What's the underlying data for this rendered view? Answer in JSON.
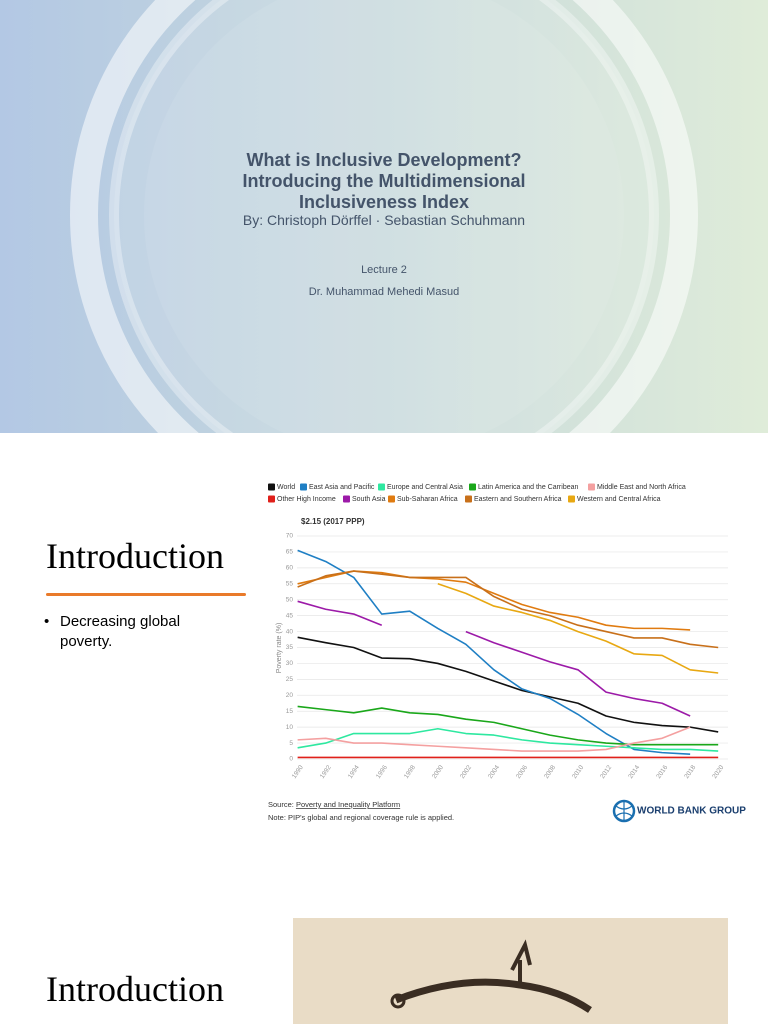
{
  "slide1": {
    "title_lines": [
      "What is Inclusive Development?",
      "Introducing the Multidimensional",
      "Inclusiveness Index"
    ],
    "byline": "By: Christoph Dörffel · Sebastian Schuhmann",
    "lecture": "Lecture 2",
    "instructor": "Dr. Muhammad Mehedi Masud"
  },
  "slide2": {
    "title": "Introduction",
    "bullets": [
      "Decreasing global poverty."
    ],
    "chart_data": {
      "type": "line",
      "subtitle": "$2.15 (2017 PPP)",
      "y_label": "Poverty rate (%)",
      "x": [
        1990,
        1992,
        1994,
        1996,
        1998,
        2000,
        2002,
        2004,
        2006,
        2008,
        2010,
        2012,
        2014,
        2016,
        2018,
        2020
      ],
      "xlim": [
        1988.6,
        2020.7
      ],
      "xticks": [
        1990,
        1992,
        1994,
        1996,
        1998,
        2000,
        2002,
        2004,
        2006,
        2008,
        2010,
        2012,
        2014,
        2016,
        2018,
        2020
      ],
      "ylim": [
        0,
        70
      ],
      "yticks": [
        0,
        5,
        10,
        15,
        20,
        25,
        30,
        35,
        40,
        45,
        50,
        55,
        60,
        65,
        70
      ],
      "grid": true,
      "series": [
        {
          "name": "World",
          "color": "#111111",
          "values": [
            38.2,
            36.5,
            35,
            31.7,
            31.5,
            30,
            27.5,
            24.5,
            21.5,
            19.5,
            17.5,
            13.5,
            11.5,
            10.5,
            10,
            8.5
          ]
        },
        {
          "name": "East Asia and Pacific",
          "color": "#1f7fc4",
          "values": [
            65.5,
            62,
            57,
            45.5,
            46.4,
            41,
            36,
            28,
            22,
            19,
            14,
            8,
            3,
            2,
            1.5,
            null
          ]
        },
        {
          "name": "Europe and Central Asia",
          "color": "#2ee8a0",
          "values": [
            3.5,
            5,
            8,
            8,
            8,
            9.5,
            8,
            7.5,
            6,
            5,
            4.5,
            4,
            3.5,
            3,
            3,
            2.5
          ]
        },
        {
          "name": "Latin America and the Carribean",
          "color": "#1aa71a",
          "values": [
            16.5,
            15.5,
            14.5,
            16,
            14.5,
            14,
            12.5,
            11.5,
            9.5,
            7.5,
            6,
            5,
            4.5,
            4.5,
            4.5,
            4.5
          ]
        },
        {
          "name": "Middle East and North Africa",
          "color": "#f4a0a0",
          "values": [
            6,
            6.5,
            5,
            5,
            4.5,
            4,
            3.5,
            3,
            2.5,
            2.5,
            2.5,
            3,
            5,
            6.5,
            10,
            null
          ]
        },
        {
          "name": "Other High Income",
          "color": "#e0201a",
          "values": [
            0.5,
            0.5,
            0.5,
            0.5,
            0.5,
            0.5,
            0.5,
            0.5,
            0.5,
            0.5,
            0.5,
            0.5,
            0.5,
            0.5,
            0.5,
            0.5
          ]
        },
        {
          "name": "South Asia",
          "color": "#9c1aa8",
          "values": [
            49.5,
            47,
            45.5,
            42,
            null,
            null,
            40,
            36.5,
            33.5,
            30.5,
            28,
            21,
            19,
            17.5,
            13.5,
            null
          ]
        },
        {
          "name": "Sub-Saharan Africa",
          "color": "#e07b10",
          "values": [
            55,
            57,
            59,
            58.5,
            57,
            56.5,
            55.5,
            52,
            48.5,
            46,
            44.5,
            42,
            41,
            41,
            40.5,
            null
          ]
        },
        {
          "name": "Eastern and Southern Africa",
          "color": "#c8701a",
          "values": [
            54,
            57.5,
            59,
            58,
            57,
            57,
            57,
            51,
            47,
            45,
            42,
            40,
            38,
            38,
            36,
            35
          ]
        },
        {
          "name": "Western and Central Africa",
          "color": "#e8a812",
          "values": [
            null,
            null,
            null,
            null,
            null,
            55,
            52,
            48,
            46,
            43.5,
            40,
            37,
            33,
            32.5,
            28,
            27
          ]
        }
      ],
      "source_prefix": "Source: ",
      "source_link": "Poverty and Inequality Platform",
      "note": "Note: PIP's global and regional coverage rule is applied.",
      "logo": "WORLD BANK GROUP"
    }
  },
  "slide3": {
    "title": "Introduction"
  }
}
